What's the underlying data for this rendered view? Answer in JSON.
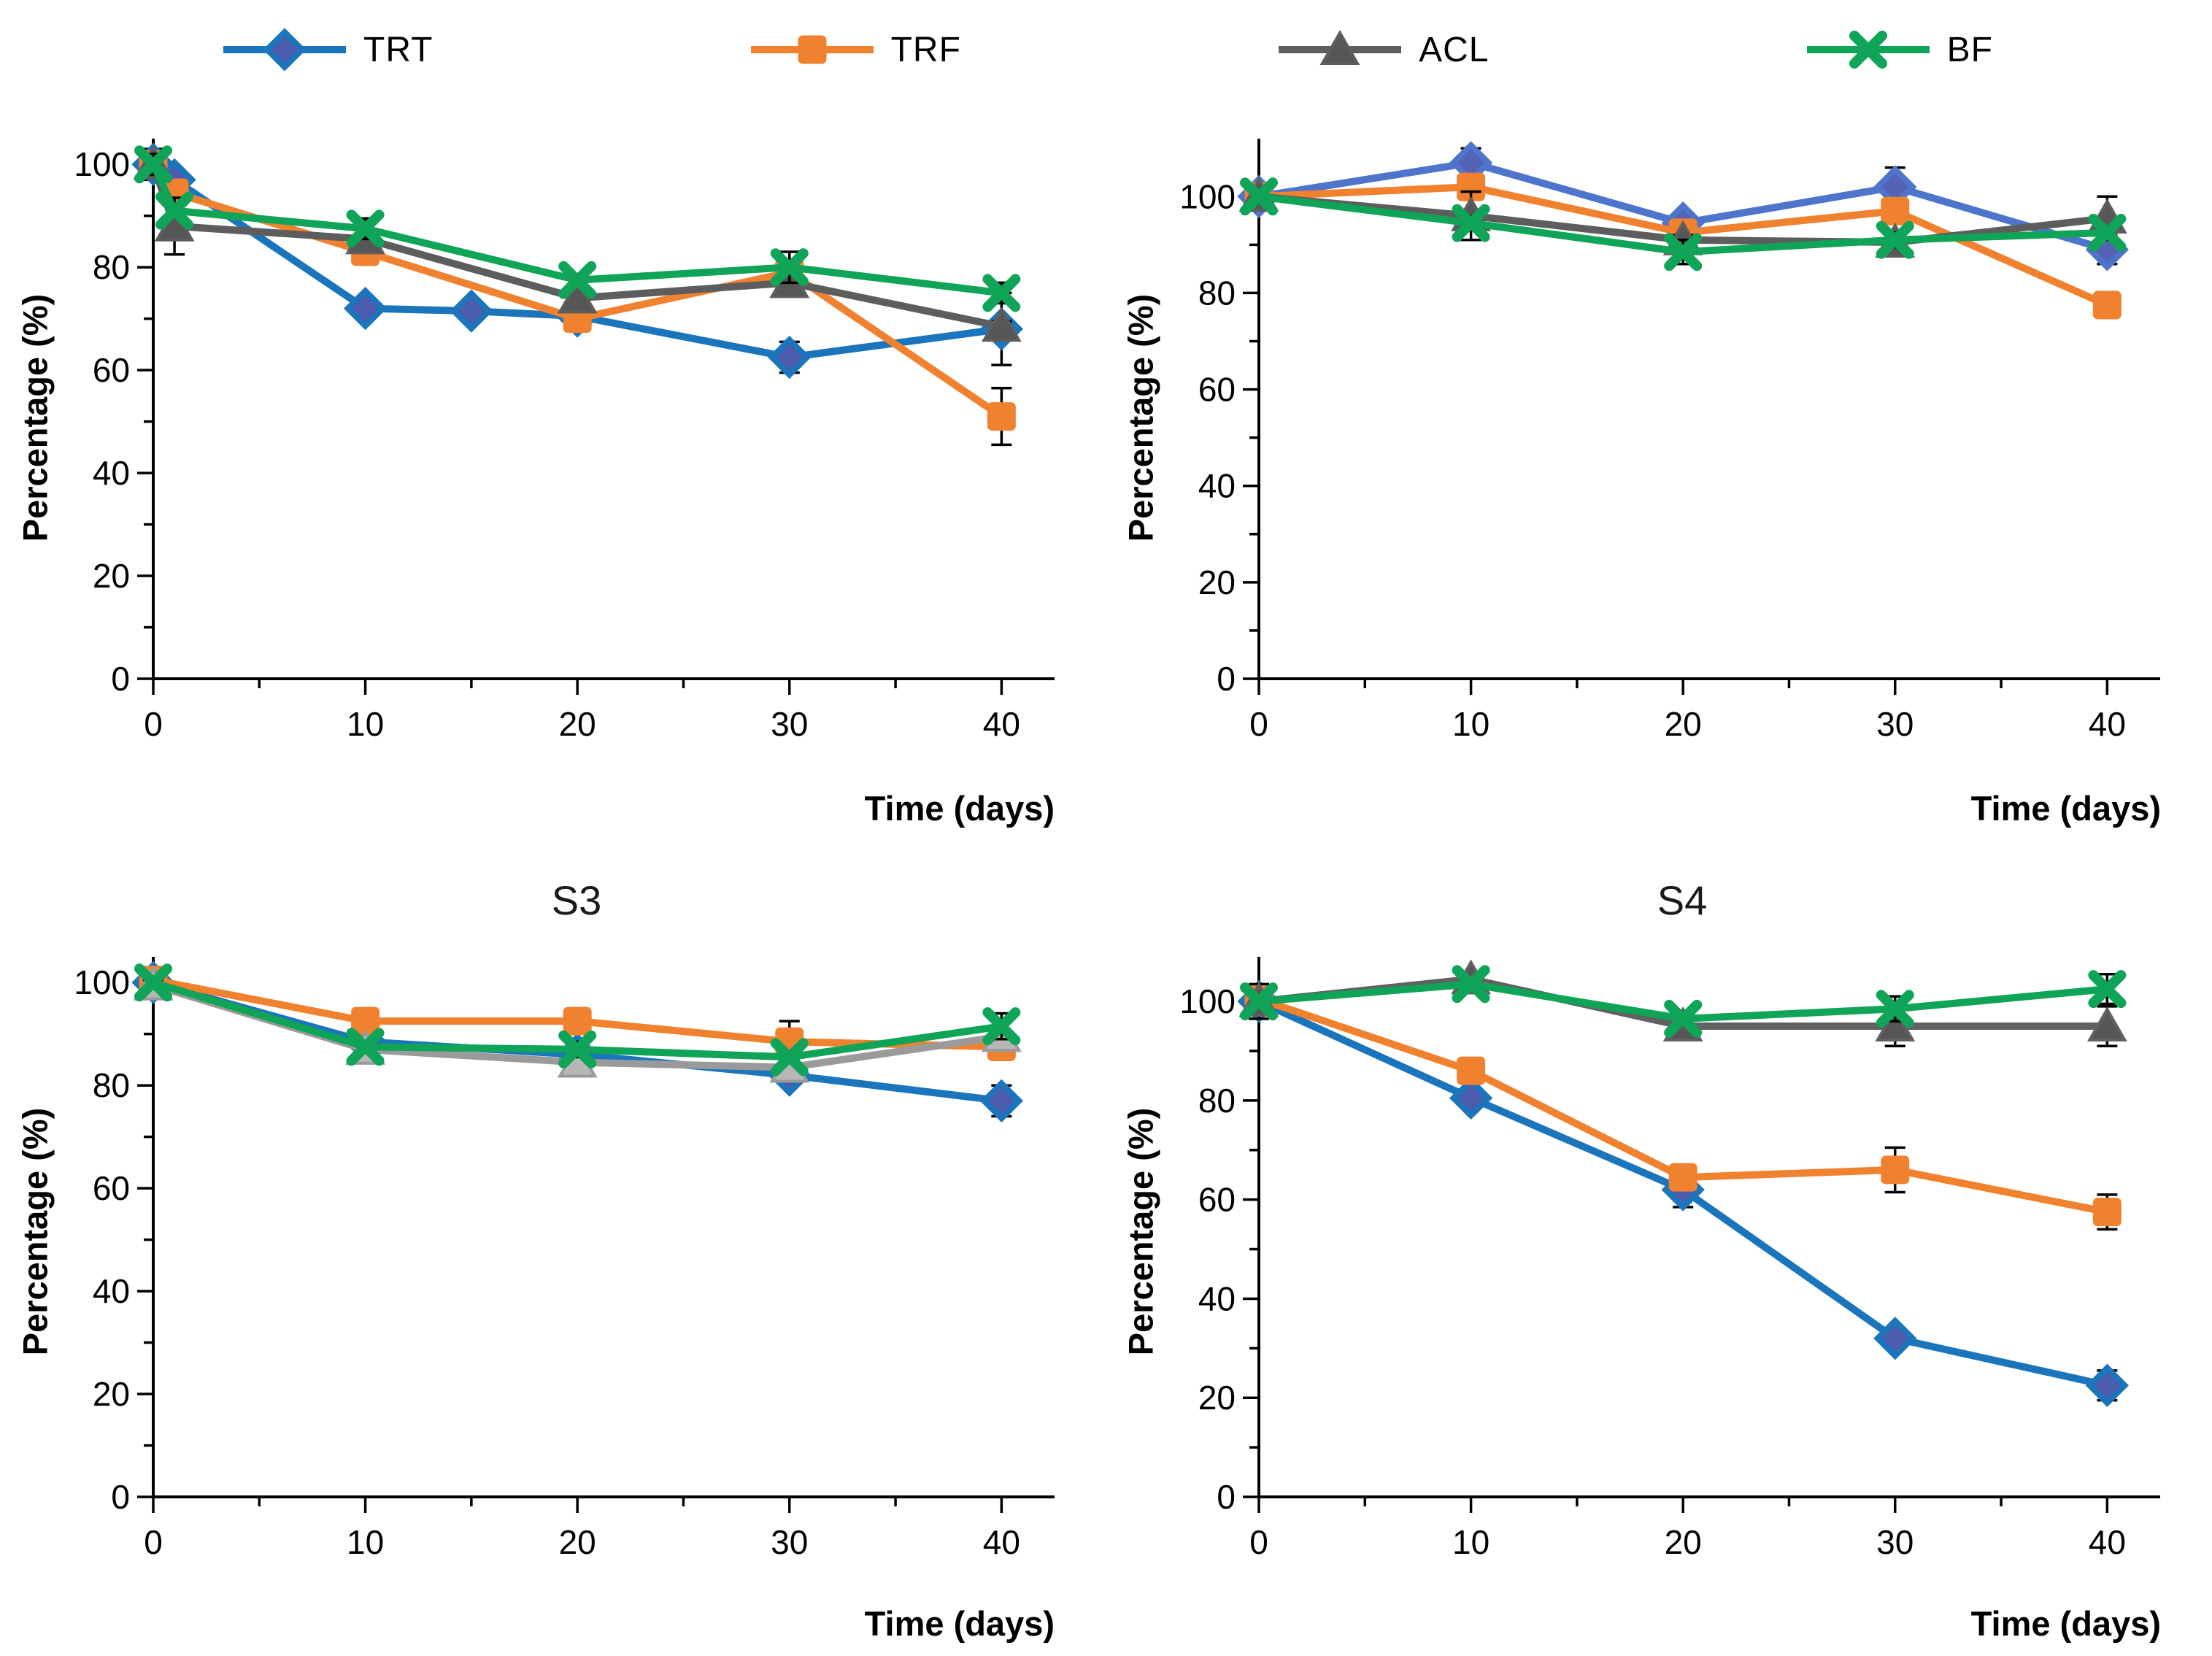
{
  "legend": {
    "items": [
      {
        "label": "TRT",
        "marker": "diamond",
        "line_color": "#1b75bc",
        "marker_fill": "#4a5cab"
      },
      {
        "label": "TRF",
        "marker": "square",
        "line_color": "#f0812f",
        "marker_fill": "#f0812f"
      },
      {
        "label": "ACL",
        "marker": "triangle",
        "line_color": "#5d5d5d",
        "marker_fill": "#565656"
      },
      {
        "label": "BF",
        "marker": "x",
        "line_color": "#0fa457",
        "marker_fill": "#0fa457"
      }
    ]
  },
  "chart_data": [
    {
      "type": "line",
      "title": "",
      "xlabel": "Time (days)",
      "ylabel": "Percentage (%)",
      "xlim": [
        0,
        42.5
      ],
      "ylim": [
        0,
        105
      ],
      "x_major_ticks": [
        0,
        10,
        20,
        30,
        40
      ],
      "x_minor_step": 5,
      "y_major_ticks": [
        0,
        20,
        40,
        60,
        80,
        100
      ],
      "y_minor_step": 10,
      "grid": false,
      "legend_position": "top",
      "series": [
        {
          "name": "TRT",
          "marker": "diamond",
          "line_color": "#1b75bc",
          "marker_fill": "#4a5cab",
          "points": [
            [
              0,
              100,
              3
            ],
            [
              1,
              97,
              0
            ],
            [
              10,
              72,
              0
            ],
            [
              15,
              71.5,
              0
            ],
            [
              20,
              70.5,
              0
            ],
            [
              30,
              62.5,
              3
            ],
            [
              40,
              68,
              7
            ]
          ]
        },
        {
          "name": "TRF",
          "marker": "square",
          "line_color": "#f0812f",
          "marker_fill": "#f0812f",
          "points": [
            [
              0,
              100,
              0
            ],
            [
              1,
              94.5,
              2
            ],
            [
              10,
              83,
              0
            ],
            [
              20,
              70,
              2.5
            ],
            [
              30,
              79,
              0
            ],
            [
              40,
              51,
              5.5
            ]
          ]
        },
        {
          "name": "ACL",
          "marker": "triangle",
          "line_color": "#5d5d5d",
          "marker_fill": "#565656",
          "points": [
            [
              0,
              100,
              0
            ],
            [
              1,
              88,
              5.5
            ],
            [
              10,
              85.5,
              0
            ],
            [
              20,
              74,
              1.5
            ],
            [
              30,
              77,
              2
            ],
            [
              40,
              68.5,
              1
            ]
          ]
        },
        {
          "name": "BF",
          "marker": "x",
          "line_color": "#0fa457",
          "marker_fill": "#0fa457",
          "points": [
            [
              0,
              100,
              2
            ],
            [
              1,
              91,
              0
            ],
            [
              10,
              87.5,
              2
            ],
            [
              20,
              77.5,
              1
            ],
            [
              30,
              80,
              3
            ],
            [
              40,
              75,
              2
            ]
          ]
        }
      ]
    },
    {
      "type": "line",
      "title": "",
      "xlabel": "Time (days)",
      "ylabel": "Percentage (%)",
      "xlim": [
        0,
        42.5
      ],
      "ylim": [
        0,
        112
      ],
      "x_major_ticks": [
        0,
        10,
        20,
        30,
        40
      ],
      "x_minor_step": 5,
      "y_major_ticks": [
        0,
        20,
        40,
        60,
        80,
        100
      ],
      "y_minor_step": 10,
      "grid": false,
      "legend_position": "top",
      "series": [
        {
          "name": "TRT",
          "marker": "diamond",
          "line_color": "#4e75cb",
          "marker_fill": "#5563b5",
          "points": [
            [
              0,
              100,
              1
            ],
            [
              10,
              107,
              3
            ],
            [
              20,
              94.5,
              1.5
            ],
            [
              30,
              102,
              4
            ],
            [
              40,
              89,
              3
            ]
          ]
        },
        {
          "name": "TRF",
          "marker": "square",
          "line_color": "#f0812f",
          "marker_fill": "#f0812f",
          "points": [
            [
              0,
              100,
              1
            ],
            [
              10,
              102,
              1
            ],
            [
              20,
              92.5,
              1
            ],
            [
              30,
              97,
              1
            ],
            [
              40,
              77.5,
              1
            ]
          ]
        },
        {
          "name": "ACL",
          "marker": "triangle",
          "line_color": "#5d5d5d",
          "marker_fill": "#565656",
          "points": [
            [
              0,
              100,
              1
            ],
            [
              10,
              96,
              5
            ],
            [
              20,
              91,
              1
            ],
            [
              30,
              90.5,
              1.5
            ],
            [
              40,
              95.5,
              4.5
            ]
          ]
        },
        {
          "name": "BF",
          "marker": "x",
          "line_color": "#0fa457",
          "marker_fill": "#0fa457",
          "points": [
            [
              0,
              100,
              1
            ],
            [
              10,
              94.5,
              1.5
            ],
            [
              20,
              88.5,
              2.5
            ],
            [
              30,
              91,
              1.5
            ],
            [
              40,
              92.5,
              1
            ]
          ]
        }
      ]
    },
    {
      "type": "line",
      "title": "S3",
      "xlabel": "Time (days)",
      "ylabel": "Percentage (%)",
      "xlim": [
        0,
        42.5
      ],
      "ylim": [
        0,
        105
      ],
      "x_major_ticks": [
        0,
        10,
        20,
        30,
        40
      ],
      "x_minor_step": 5,
      "y_major_ticks": [
        0,
        20,
        40,
        60,
        80,
        100
      ],
      "y_minor_step": 10,
      "grid": false,
      "legend_position": "top",
      "series": [
        {
          "name": "TRT",
          "marker": "diamond",
          "line_color": "#1b75bc",
          "marker_fill": "#4a5cab",
          "points": [
            [
              0,
              100,
              2.5
            ],
            [
              10,
              88.5,
              0
            ],
            [
              20,
              86,
              0
            ],
            [
              30,
              82,
              1.5
            ],
            [
              40,
              77,
              3
            ]
          ]
        },
        {
          "name": "TRF",
          "marker": "square",
          "line_color": "#f0812f",
          "marker_fill": "#f0812f",
          "points": [
            [
              0,
              100.5,
              1
            ],
            [
              10,
              92.5,
              1
            ],
            [
              20,
              92.5,
              1
            ],
            [
              30,
              88.5,
              4
            ],
            [
              40,
              87.5,
              2.5
            ]
          ]
        },
        {
          "name": "ACL",
          "marker": "triangle",
          "line_color": "#9a9a9a",
          "marker_fill": "#b7b7b7",
          "points": [
            [
              0,
              99.5,
              1
            ],
            [
              10,
              87,
              1
            ],
            [
              20,
              84.5,
              2.5
            ],
            [
              30,
              83.5,
              1.5
            ],
            [
              40,
              89.5,
              1
            ]
          ]
        },
        {
          "name": "BF",
          "marker": "x",
          "line_color": "#0fa457",
          "marker_fill": "#0fa457",
          "points": [
            [
              0,
              100,
              1
            ],
            [
              10,
              87.5,
              1
            ],
            [
              20,
              87,
              1.5
            ],
            [
              30,
              85.5,
              1
            ],
            [
              40,
              91.5,
              2.5
            ]
          ]
        }
      ]
    },
    {
      "type": "line",
      "title": "S4",
      "xlabel": "Time (days)",
      "ylabel": "Percentage (%)",
      "xlim": [
        0,
        42.5
      ],
      "ylim": [
        0,
        109
      ],
      "x_major_ticks": [
        0,
        10,
        20,
        30,
        40
      ],
      "x_minor_step": 5,
      "y_major_ticks": [
        0,
        20,
        40,
        60,
        80,
        100
      ],
      "y_minor_step": 10,
      "grid": false,
      "legend_position": "top",
      "series": [
        {
          "name": "TRT",
          "marker": "diamond",
          "line_color": "#1b75bc",
          "marker_fill": "#4a5cab",
          "points": [
            [
              0,
              100,
              1.5
            ],
            [
              10,
              80.5,
              2
            ],
            [
              20,
              62,
              3.5
            ],
            [
              30,
              32,
              2
            ],
            [
              40,
              22.5,
              3
            ]
          ]
        },
        {
          "name": "TRF",
          "marker": "square",
          "line_color": "#f0812f",
          "marker_fill": "#f0812f",
          "points": [
            [
              0,
              100.5,
              1
            ],
            [
              10,
              86,
              1
            ],
            [
              20,
              64.5,
              1.5
            ],
            [
              30,
              66,
              4.5
            ],
            [
              40,
              57.5,
              3.5
            ]
          ]
        },
        {
          "name": "ACL",
          "marker": "triangle",
          "line_color": "#616161",
          "marker_fill": "#565656",
          "points": [
            [
              0,
              100,
              3.5
            ],
            [
              10,
              104.5,
              1
            ],
            [
              20,
              95,
              2
            ],
            [
              30,
              95,
              4
            ],
            [
              40,
              95,
              4
            ]
          ]
        },
        {
          "name": "BF",
          "marker": "x",
          "line_color": "#0fa457",
          "marker_fill": "#0fa457",
          "points": [
            [
              0,
              100,
              1
            ],
            [
              10,
              103.5,
              1
            ],
            [
              20,
              96.5,
              1
            ],
            [
              30,
              98.5,
              2.5
            ],
            [
              40,
              102.5,
              3
            ]
          ]
        }
      ]
    }
  ]
}
